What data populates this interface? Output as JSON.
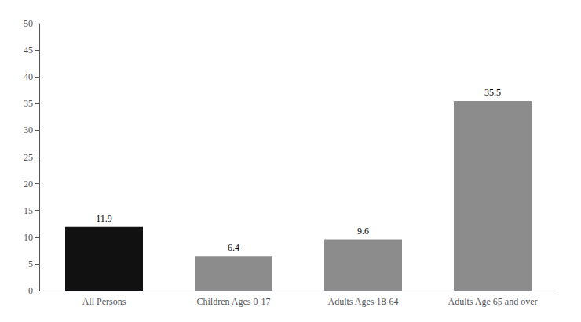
{
  "chart_data": {
    "type": "bar",
    "categories": [
      "All Persons",
      "Children Ages 0-17",
      "Adults Ages 18-64",
      "Adults Age 65 and over"
    ],
    "values": [
      11.9,
      6.4,
      9.6,
      35.5
    ],
    "colors": [
      "#111111",
      "#8c8c8c",
      "#8c8c8c",
      "#8c8c8c"
    ],
    "ylim": [
      0,
      50
    ],
    "yticks": [
      0,
      5,
      10,
      15,
      20,
      25,
      30,
      35,
      40,
      45,
      50
    ],
    "grid": false,
    "data_labels": true
  }
}
